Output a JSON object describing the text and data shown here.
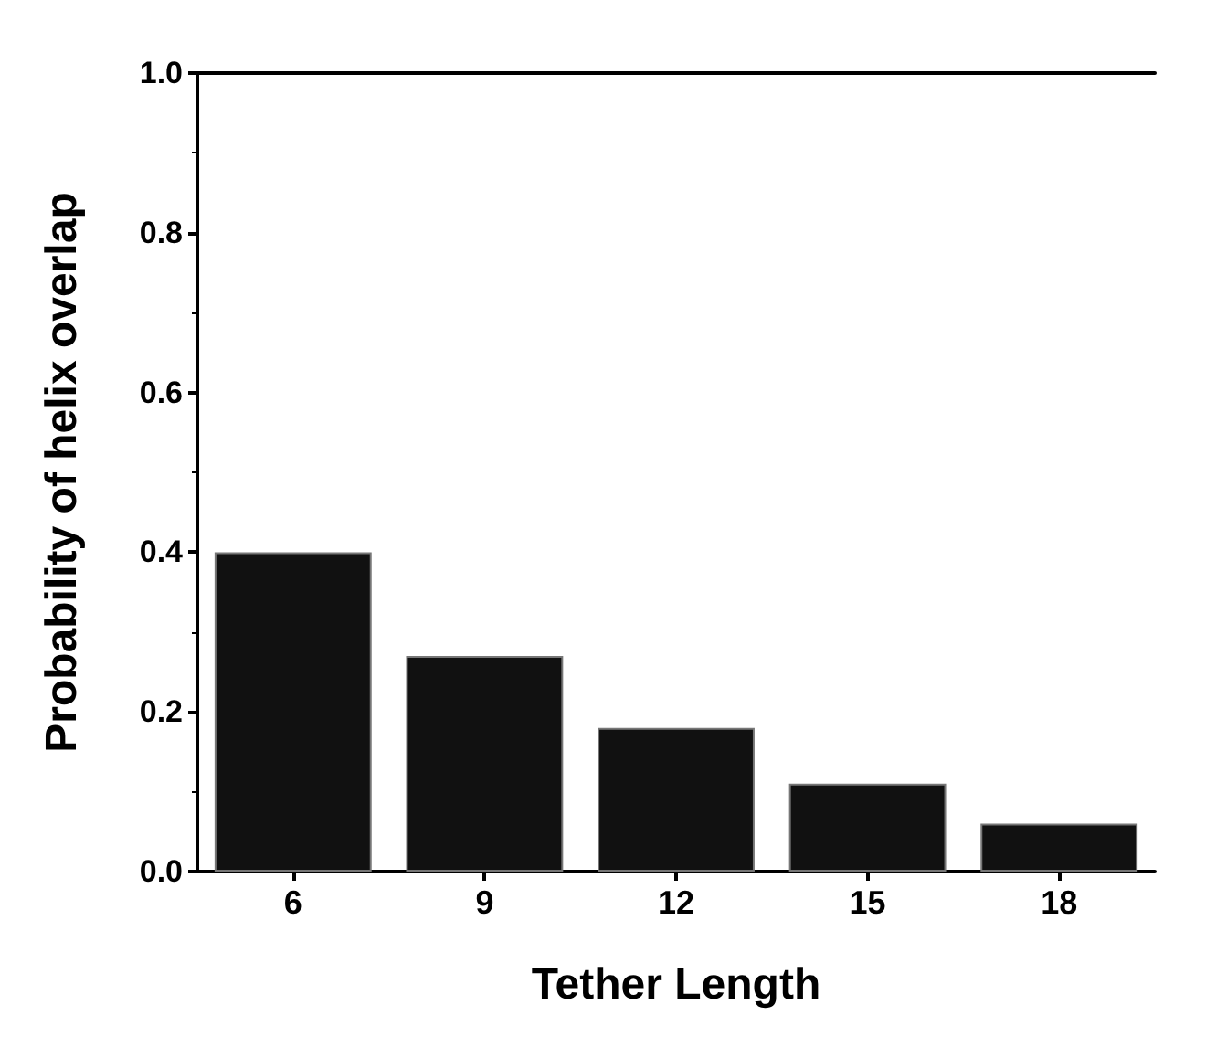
{
  "chart_data": {
    "type": "bar",
    "xlabel": "Tether Length",
    "ylabel": "Probability of helix overlap",
    "categories": [
      "6",
      "9",
      "12",
      "15",
      "18"
    ],
    "values": [
      0.4,
      0.27,
      0.18,
      0.11,
      0.06
    ],
    "color": "#111111",
    "ylim": [
      0,
      1.0
    ],
    "yticks": [
      {
        "value": 0,
        "label": "0.0"
      },
      {
        "value": 0.2,
        "label": "0.2"
      },
      {
        "value": 0.4,
        "label": "0.4"
      },
      {
        "value": 0.6,
        "label": "0.6"
      },
      {
        "value": 0.8,
        "label": "0.8"
      },
      {
        "value": 1.0,
        "label": "1.0"
      }
    ],
    "grid": false
  }
}
